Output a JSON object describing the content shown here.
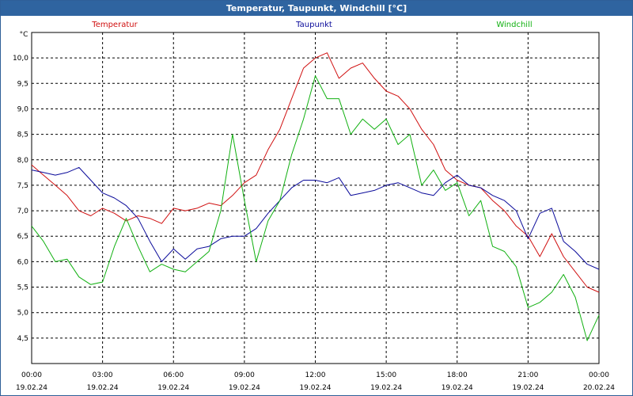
{
  "window_title": "Temperatur, Taupunkt, Windchill [°C]",
  "chart_data": {
    "type": "line",
    "title": "Temperatur, Taupunkt, Windchill [°C]",
    "ylabel": "°C",
    "xlabel": "",
    "ylim": [
      4.0,
      10.5
    ],
    "xlim": [
      0,
      24
    ],
    "grid": true,
    "yticks": [
      4.5,
      5.0,
      5.5,
      6.0,
      6.5,
      7.0,
      7.5,
      8.0,
      8.5,
      9.0,
      9.5,
      10.0
    ],
    "ytick_labels": [
      "4,5",
      "5,0",
      "5,5",
      "6,0",
      "6,5",
      "7,0",
      "7,5",
      "8,0",
      "8,5",
      "9,0",
      "9,5",
      "10,0"
    ],
    "xticks": [
      {
        "hour": 0,
        "time": "00:00",
        "date": "19.02.24"
      },
      {
        "hour": 3,
        "time": "03:00",
        "date": "19.02.24"
      },
      {
        "hour": 6,
        "time": "06:00",
        "date": "19.02.24"
      },
      {
        "hour": 9,
        "time": "09:00",
        "date": "19.02.24"
      },
      {
        "hour": 12,
        "time": "12:00",
        "date": "19.02.24"
      },
      {
        "hour": 15,
        "time": "15:00",
        "date": "19.02.24"
      },
      {
        "hour": 18,
        "time": "18:00",
        "date": "19.02.24"
      },
      {
        "hour": 21,
        "time": "21:00",
        "date": "19.02.24"
      },
      {
        "hour": 24,
        "time": "00:00",
        "date": "20.02.24"
      }
    ],
    "series": [
      {
        "name": "Temperatur",
        "color": "#d01010",
        "x": [
          0,
          0.5,
          1,
          1.5,
          2,
          2.5,
          3,
          3.5,
          4,
          4.5,
          5,
          5.5,
          6,
          6.5,
          7,
          7.5,
          8,
          8.5,
          9,
          9.5,
          10,
          10.5,
          11,
          11.5,
          12,
          12.5,
          13,
          13.5,
          14,
          14.5,
          15,
          15.5,
          16,
          16.5,
          17,
          17.5,
          18,
          18.5,
          19,
          19.5,
          20,
          20.5,
          21,
          21.5,
          22,
          22.5,
          23,
          23.5,
          24
        ],
        "values": [
          7.9,
          7.7,
          7.5,
          7.3,
          7.0,
          6.9,
          7.05,
          6.95,
          6.8,
          6.9,
          6.85,
          6.75,
          7.05,
          7.0,
          7.05,
          7.15,
          7.1,
          7.3,
          7.55,
          7.7,
          8.2,
          8.6,
          9.2,
          9.8,
          10.0,
          10.1,
          9.6,
          9.8,
          9.9,
          9.6,
          9.35,
          9.25,
          9.0,
          8.6,
          8.3,
          7.8,
          7.6,
          7.5,
          7.45,
          7.2,
          7.0,
          6.7,
          6.5,
          6.1,
          6.55,
          6.1,
          5.8,
          5.5,
          5.4
        ]
      },
      {
        "name": "Taupunkt",
        "color": "#0a0a9a",
        "x": [
          0,
          0.5,
          1,
          1.5,
          2,
          2.5,
          3,
          3.5,
          4,
          4.5,
          5,
          5.5,
          6,
          6.5,
          7,
          7.5,
          8,
          8.5,
          9,
          9.5,
          10,
          10.5,
          11,
          11.5,
          12,
          12.5,
          13,
          13.5,
          14,
          14.5,
          15,
          15.5,
          16,
          16.5,
          17,
          17.5,
          18,
          18.5,
          19,
          19.5,
          20,
          20.5,
          21,
          21.5,
          22,
          22.5,
          23,
          23.5,
          24
        ],
        "values": [
          7.8,
          7.75,
          7.7,
          7.75,
          7.85,
          7.6,
          7.35,
          7.25,
          7.1,
          6.85,
          6.4,
          6.0,
          6.25,
          6.05,
          6.25,
          6.3,
          6.45,
          6.5,
          6.5,
          6.65,
          6.95,
          7.2,
          7.45,
          7.6,
          7.6,
          7.55,
          7.65,
          7.3,
          7.35,
          7.4,
          7.5,
          7.55,
          7.45,
          7.35,
          7.3,
          7.55,
          7.7,
          7.5,
          7.45,
          7.3,
          7.2,
          7.0,
          6.45,
          6.95,
          7.05,
          6.4,
          6.2,
          5.95,
          5.85
        ]
      },
      {
        "name": "Windchill",
        "color": "#10b010",
        "x": [
          0,
          0.5,
          1,
          1.5,
          2,
          2.5,
          3,
          3.5,
          4,
          4.5,
          5,
          5.5,
          6,
          6.5,
          7,
          7.5,
          8,
          8.5,
          9,
          9.5,
          10,
          10.5,
          11,
          11.5,
          12,
          12.5,
          13,
          13.5,
          14,
          14.5,
          15,
          15.5,
          16,
          16.5,
          17,
          17.5,
          18,
          18.5,
          19,
          19.5,
          20,
          20.5,
          21,
          21.5,
          22,
          22.5,
          23,
          23.5,
          24
        ],
        "values": [
          6.7,
          6.4,
          6.0,
          6.05,
          5.7,
          5.55,
          5.6,
          6.3,
          6.85,
          6.3,
          5.8,
          5.95,
          5.85,
          5.8,
          6.0,
          6.2,
          7.0,
          8.5,
          7.2,
          6.0,
          6.8,
          7.2,
          8.1,
          8.8,
          9.65,
          9.2,
          9.2,
          8.5,
          8.8,
          8.6,
          8.8,
          8.3,
          8.5,
          7.5,
          7.8,
          7.4,
          7.55,
          6.9,
          7.2,
          6.3,
          6.2,
          5.9,
          5.1,
          5.2,
          5.4,
          5.75,
          5.3,
          4.45,
          4.95
        ]
      }
    ]
  }
}
